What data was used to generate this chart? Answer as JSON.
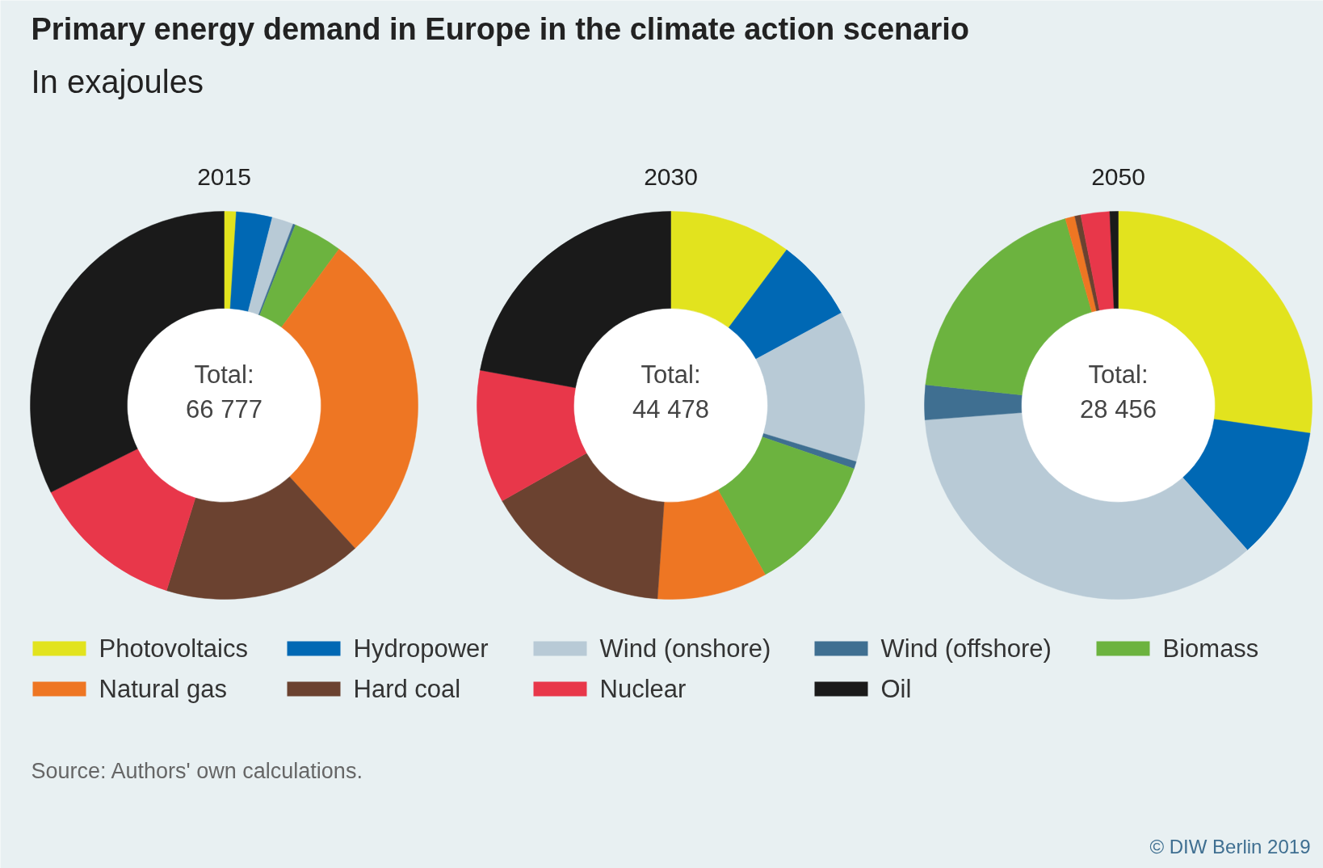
{
  "chart_data": {
    "type": "donut",
    "title": "Primary energy demand in Europe in the climate action scenario",
    "subtitle": "In exajoules",
    "legend": "bottom",
    "categories": [
      "Photovoltaics",
      "Hydropower",
      "Wind (onshore)",
      "Wind (offshore)",
      "Biomass",
      "Natural gas",
      "Hard coal",
      "Nuclear",
      "Oil"
    ],
    "colors": [
      "#e2e31e",
      "#0068b4",
      "#b8cad6",
      "#3f6f91",
      "#6cb33f",
      "#ee7623",
      "#6b4230",
      "#e8374a",
      "#1a1a1a"
    ],
    "series": [
      {
        "name": "2015",
        "values": [
          1.0,
          3.0,
          1.8,
          0.2,
          4.1,
          28.1,
          16.6,
          12.8,
          32.4
        ]
      },
      {
        "name": "2030",
        "values": [
          10.2,
          6.9,
          12.6,
          0.6,
          11.6,
          9.2,
          15.7,
          11.1,
          22.1
        ]
      },
      {
        "name": "2050",
        "values": [
          27.3,
          11.1,
          35.4,
          2.9,
          18.9,
          0.8,
          0.5,
          2.4,
          0.7
        ]
      }
    ],
    "annotations": [
      "Total:",
      "66 777",
      "Total:",
      "44 478",
      "Total:",
      "28 456",
      "Source: Authors' own calculations.",
      "© DIW Berlin 2019"
    ]
  }
}
